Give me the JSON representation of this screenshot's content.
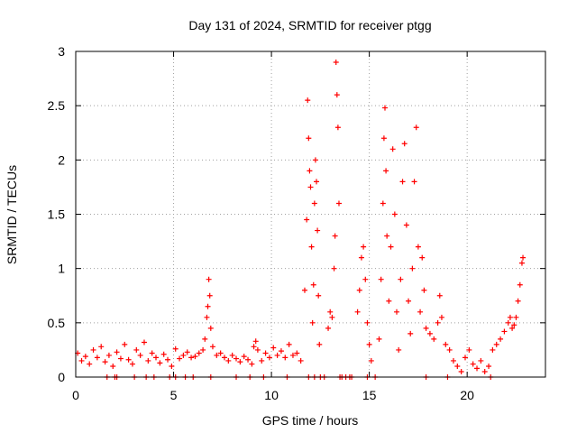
{
  "chart_data": {
    "type": "scatter",
    "title": "Day 131 of 2024, SRMTID for receiver ptgg",
    "xlabel": "GPS time / hours",
    "ylabel": "SRMTID / TECUs",
    "xlim": [
      0,
      24
    ],
    "ylim": [
      0,
      3
    ],
    "xticks": [
      "0",
      "5",
      "10",
      "15",
      "20"
    ],
    "yticks": [
      "0",
      "0.5",
      "1",
      "1.5",
      "2",
      "2.5",
      "3"
    ],
    "grid": true,
    "marker": "plus",
    "marker_color": "#ff0000",
    "series": [
      {
        "name": "SRMTID",
        "points": [
          [
            0.1,
            0.22
          ],
          [
            0.3,
            0.15
          ],
          [
            0.5,
            0.19
          ],
          [
            0.7,
            0.12
          ],
          [
            0.9,
            0.25
          ],
          [
            1.1,
            0.18
          ],
          [
            1.3,
            0.28
          ],
          [
            1.5,
            0.14
          ],
          [
            1.7,
            0.2
          ],
          [
            1.9,
            0.1
          ],
          [
            2.1,
            0.23
          ],
          [
            2.3,
            0.17
          ],
          [
            2.5,
            0.3
          ],
          [
            2.7,
            0.16
          ],
          [
            2.9,
            0.12
          ],
          [
            3.1,
            0.25
          ],
          [
            3.3,
            0.2
          ],
          [
            3.5,
            0.32
          ],
          [
            3.7,
            0.15
          ],
          [
            3.9,
            0.22
          ],
          [
            4.1,
            0.18
          ],
          [
            4.3,
            0.13
          ],
          [
            4.5,
            0.21
          ],
          [
            4.7,
            0.16
          ],
          [
            4.9,
            0.1
          ],
          [
            5.1,
            0.26
          ],
          [
            5.3,
            0.17
          ],
          [
            5.5,
            0.2
          ],
          [
            5.7,
            0.23
          ],
          [
            5.9,
            0.18
          ],
          [
            6.1,
            0.19
          ],
          [
            6.3,
            0.22
          ],
          [
            6.5,
            0.25
          ],
          [
            6.6,
            0.35
          ],
          [
            6.7,
            0.55
          ],
          [
            6.75,
            0.65
          ],
          [
            6.8,
            0.9
          ],
          [
            6.85,
            0.75
          ],
          [
            6.9,
            0.45
          ],
          [
            7.0,
            0.28
          ],
          [
            7.2,
            0.2
          ],
          [
            7.4,
            0.22
          ],
          [
            7.6,
            0.18
          ],
          [
            7.8,
            0.15
          ],
          [
            8.0,
            0.2
          ],
          [
            8.2,
            0.17
          ],
          [
            8.4,
            0.14
          ],
          [
            8.6,
            0.19
          ],
          [
            8.8,
            0.16
          ],
          [
            9.0,
            0.12
          ],
          [
            9.1,
            0.28
          ],
          [
            9.2,
            0.33
          ],
          [
            9.3,
            0.25
          ],
          [
            9.5,
            0.15
          ],
          [
            9.7,
            0.22
          ],
          [
            9.9,
            0.18
          ],
          [
            10.1,
            0.27
          ],
          [
            10.3,
            0.2
          ],
          [
            10.5,
            0.24
          ],
          [
            10.7,
            0.18
          ],
          [
            10.9,
            0.3
          ],
          [
            11.1,
            0.2
          ],
          [
            11.3,
            0.22
          ],
          [
            11.5,
            0.15
          ],
          [
            11.7,
            0.8
          ],
          [
            11.8,
            1.45
          ],
          [
            11.85,
            2.55
          ],
          [
            11.9,
            2.2
          ],
          [
            11.95,
            1.9
          ],
          [
            12.0,
            1.75
          ],
          [
            12.05,
            1.2
          ],
          [
            12.1,
            0.5
          ],
          [
            12.15,
            0.85
          ],
          [
            12.2,
            1.6
          ],
          [
            12.25,
            2.0
          ],
          [
            12.3,
            1.8
          ],
          [
            12.35,
            1.35
          ],
          [
            12.4,
            0.75
          ],
          [
            12.45,
            0.3
          ],
          [
            12.5,
            0.0
          ],
          [
            12.7,
            0.0
          ],
          [
            12.9,
            0.45
          ],
          [
            13.0,
            0.6
          ],
          [
            13.1,
            0.55
          ],
          [
            13.2,
            1.0
          ],
          [
            13.25,
            1.3
          ],
          [
            13.3,
            2.9
          ],
          [
            13.35,
            2.6
          ],
          [
            13.4,
            2.3
          ],
          [
            13.45,
            1.6
          ],
          [
            13.5,
            0.0
          ],
          [
            13.6,
            0.0
          ],
          [
            13.8,
            0.0
          ],
          [
            14.0,
            0.0
          ],
          [
            14.1,
            0.0
          ],
          [
            14.4,
            0.6
          ],
          [
            14.5,
            0.8
          ],
          [
            14.6,
            1.1
          ],
          [
            14.7,
            1.2
          ],
          [
            14.8,
            0.9
          ],
          [
            14.9,
            0.5
          ],
          [
            15.0,
            0.3
          ],
          [
            15.1,
            0.15
          ],
          [
            15.3,
            0.0
          ],
          [
            15.5,
            0.35
          ],
          [
            15.6,
            0.9
          ],
          [
            15.7,
            1.6
          ],
          [
            15.75,
            2.2
          ],
          [
            15.8,
            2.48
          ],
          [
            15.85,
            1.9
          ],
          [
            15.9,
            1.3
          ],
          [
            16.0,
            0.7
          ],
          [
            16.1,
            1.2
          ],
          [
            16.2,
            2.1
          ],
          [
            16.3,
            1.5
          ],
          [
            16.4,
            0.6
          ],
          [
            16.5,
            0.25
          ],
          [
            16.6,
            0.9
          ],
          [
            16.7,
            1.8
          ],
          [
            16.8,
            2.15
          ],
          [
            16.9,
            1.4
          ],
          [
            17.0,
            0.7
          ],
          [
            17.1,
            0.4
          ],
          [
            17.2,
            1.0
          ],
          [
            17.3,
            1.8
          ],
          [
            17.4,
            2.3
          ],
          [
            17.5,
            1.2
          ],
          [
            17.6,
            0.6
          ],
          [
            17.7,
            1.1
          ],
          [
            17.8,
            0.8
          ],
          [
            17.9,
            0.45
          ],
          [
            18.1,
            0.4
          ],
          [
            18.3,
            0.35
          ],
          [
            18.5,
            0.5
          ],
          [
            18.6,
            0.75
          ],
          [
            18.7,
            0.55
          ],
          [
            18.9,
            0.3
          ],
          [
            19.1,
            0.25
          ],
          [
            19.3,
            0.15
          ],
          [
            19.5,
            0.1
          ],
          [
            19.7,
            0.05
          ],
          [
            19.9,
            0.18
          ],
          [
            20.1,
            0.25
          ],
          [
            20.3,
            0.12
          ],
          [
            20.5,
            0.08
          ],
          [
            20.7,
            0.15
          ],
          [
            20.9,
            0.05
          ],
          [
            21.1,
            0.1
          ],
          [
            21.3,
            0.25
          ],
          [
            21.5,
            0.3
          ],
          [
            21.7,
            0.35
          ],
          [
            21.9,
            0.42
          ],
          [
            22.1,
            0.5
          ],
          [
            22.2,
            0.55
          ],
          [
            22.3,
            0.45
          ],
          [
            22.4,
            0.48
          ],
          [
            22.5,
            0.55
          ],
          [
            22.6,
            0.7
          ],
          [
            22.7,
            0.85
          ],
          [
            22.8,
            1.05
          ],
          [
            22.85,
            1.1
          ],
          [
            1.6,
            0.0
          ],
          [
            2.0,
            0.0
          ],
          [
            2.1,
            0.0
          ],
          [
            3.0,
            0.0
          ],
          [
            3.6,
            0.0
          ],
          [
            4.0,
            0.0
          ],
          [
            4.8,
            0.0
          ],
          [
            5.1,
            0.0
          ],
          [
            5.6,
            0.0
          ],
          [
            6.0,
            0.0
          ],
          [
            6.9,
            0.0
          ],
          [
            8.2,
            0.0
          ],
          [
            8.9,
            0.0
          ],
          [
            9.6,
            0.0
          ],
          [
            10.8,
            0.0
          ],
          [
            11.9,
            0.0
          ],
          [
            12.2,
            0.0
          ],
          [
            14.9,
            0.0
          ],
          [
            17.9,
            0.0
          ],
          [
            19.0,
            0.0
          ],
          [
            21.2,
            0.0
          ]
        ]
      }
    ]
  }
}
